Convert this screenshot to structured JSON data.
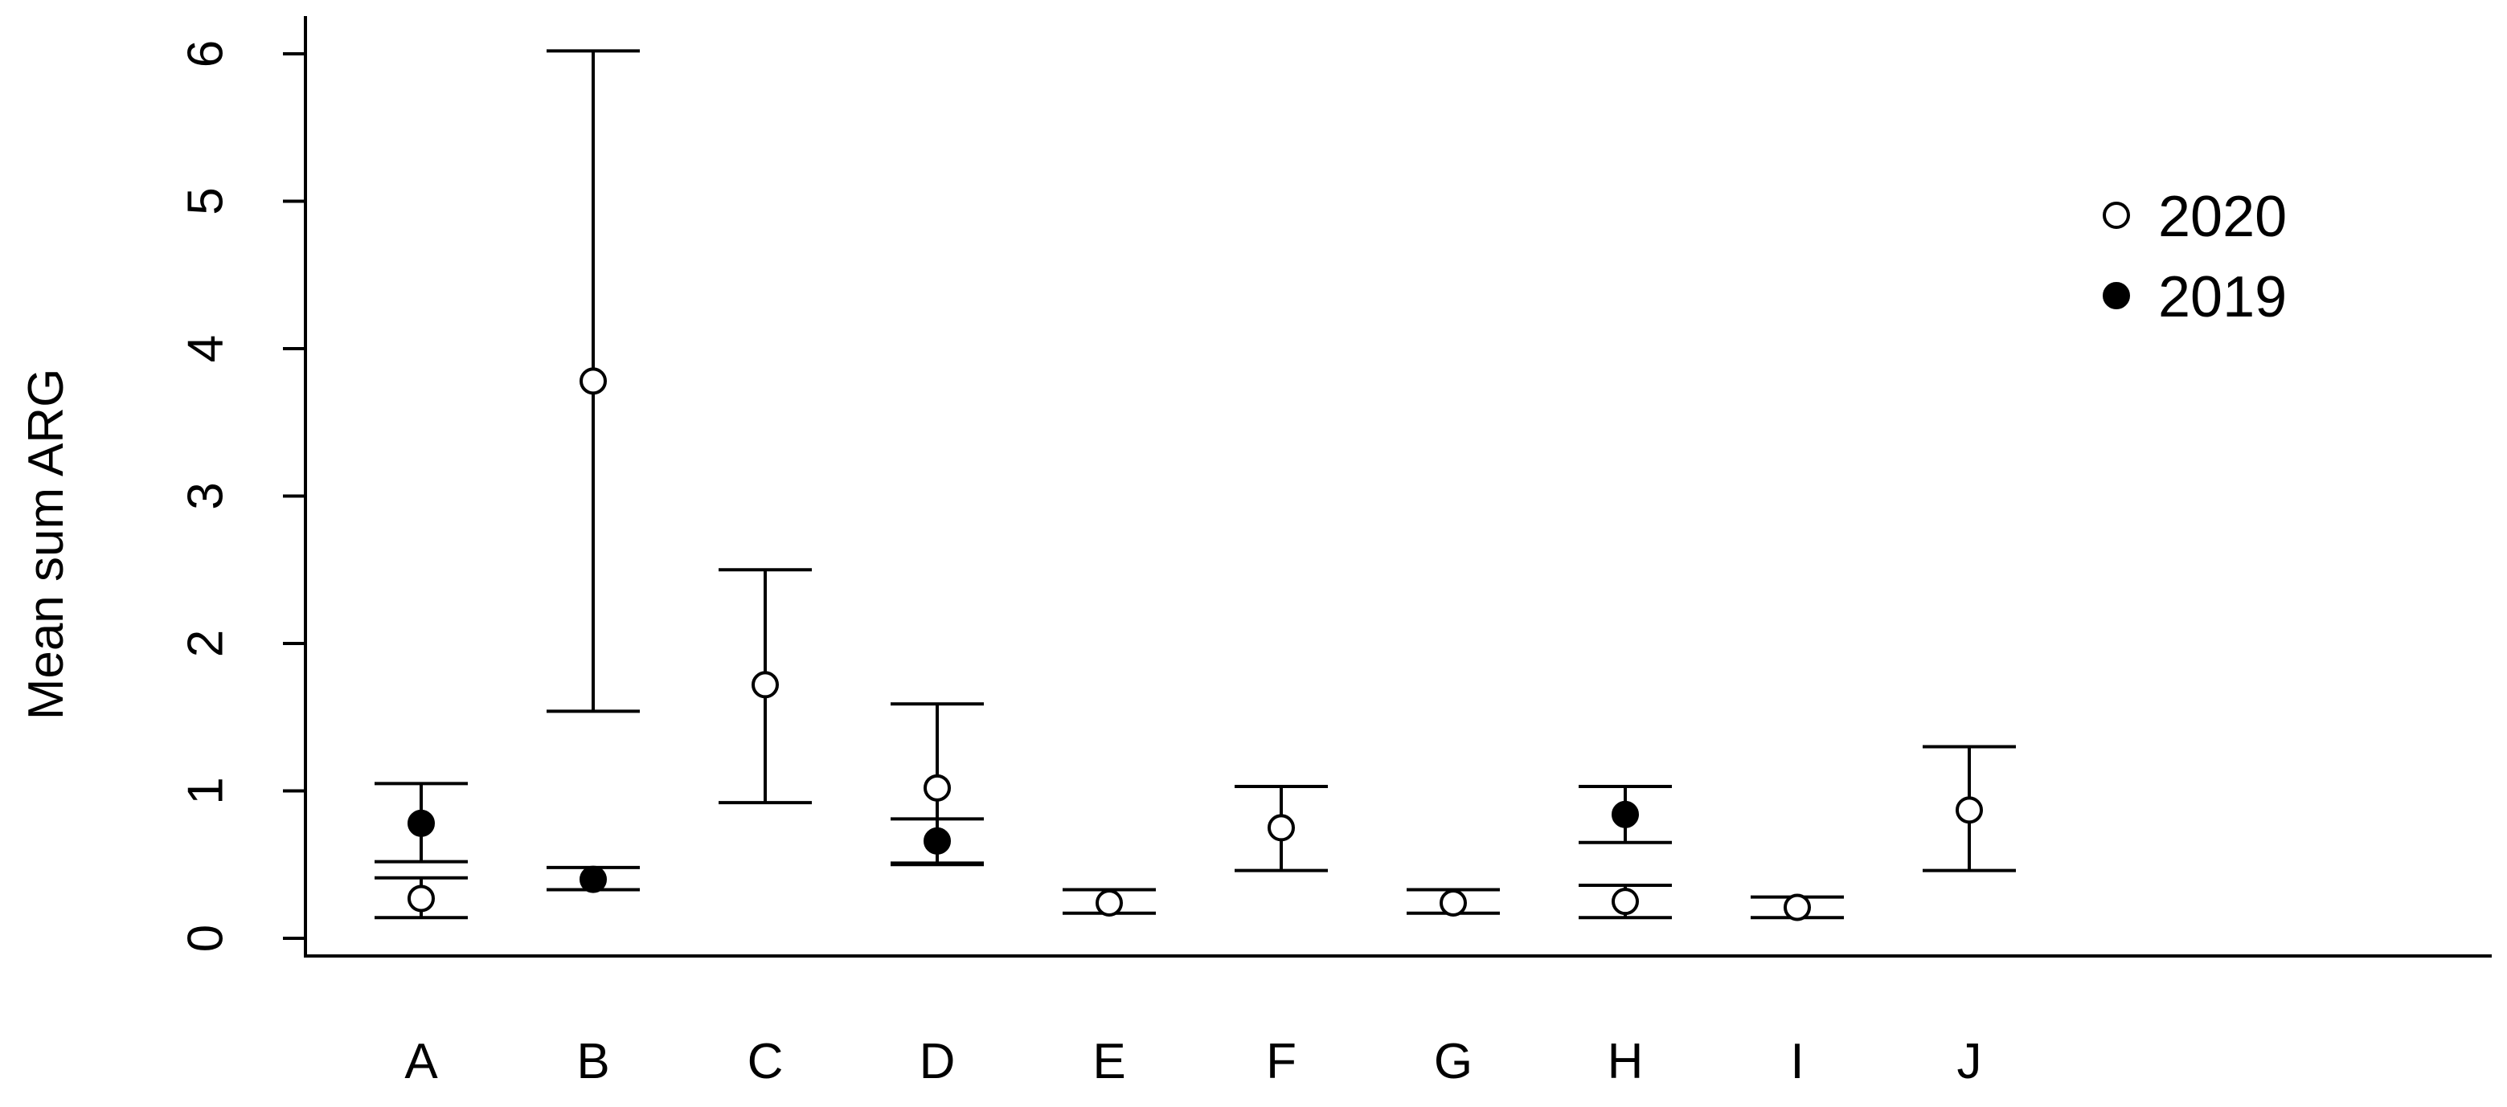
{
  "chart_data": {
    "type": "scatter",
    "title": "",
    "xlabel": "",
    "ylabel": "Mean sum ARG",
    "ylim": [
      0,
      6
    ],
    "yticks": [
      0,
      1,
      2,
      3,
      4,
      5,
      6
    ],
    "categories": [
      "A",
      "B",
      "C",
      "D",
      "E",
      "F",
      "G",
      "H",
      "I",
      "J"
    ],
    "legend": {
      "position": "top-right"
    },
    "series": [
      {
        "name": "2020",
        "marker": "open-circle",
        "color": "#000000",
        "points": [
          {
            "category": "A",
            "mean": 0.27,
            "lower": 0.14,
            "upper": 0.41
          },
          {
            "category": "B",
            "mean": 3.78,
            "lower": 1.54,
            "upper": 6.02
          },
          {
            "category": "C",
            "mean": 1.72,
            "lower": 0.92,
            "upper": 2.5
          },
          {
            "category": "D",
            "mean": 1.02,
            "lower": 0.51,
            "upper": 1.59
          },
          {
            "category": "E",
            "mean": 0.24,
            "lower": 0.17,
            "upper": 0.33
          },
          {
            "category": "F",
            "mean": 0.75,
            "lower": 0.46,
            "upper": 1.03
          },
          {
            "category": "G",
            "mean": 0.24,
            "lower": 0.17,
            "upper": 0.33
          },
          {
            "category": "H",
            "mean": 0.25,
            "lower": 0.14,
            "upper": 0.36
          },
          {
            "category": "I",
            "mean": 0.21,
            "lower": 0.14,
            "upper": 0.28
          },
          {
            "category": "J",
            "mean": 0.87,
            "lower": 0.46,
            "upper": 1.3
          }
        ]
      },
      {
        "name": "2019",
        "marker": "filled-circle",
        "color": "#000000",
        "points": [
          {
            "category": "A",
            "mean": 0.78,
            "lower": 0.52,
            "upper": 1.05
          },
          {
            "category": "B",
            "mean": 0.4,
            "lower": 0.33,
            "upper": 0.48
          },
          {
            "category": "D",
            "mean": 0.66,
            "lower": 0.5,
            "upper": 0.81
          },
          {
            "category": "H",
            "mean": 0.84,
            "lower": 0.65,
            "upper": 1.03
          }
        ]
      }
    ]
  }
}
